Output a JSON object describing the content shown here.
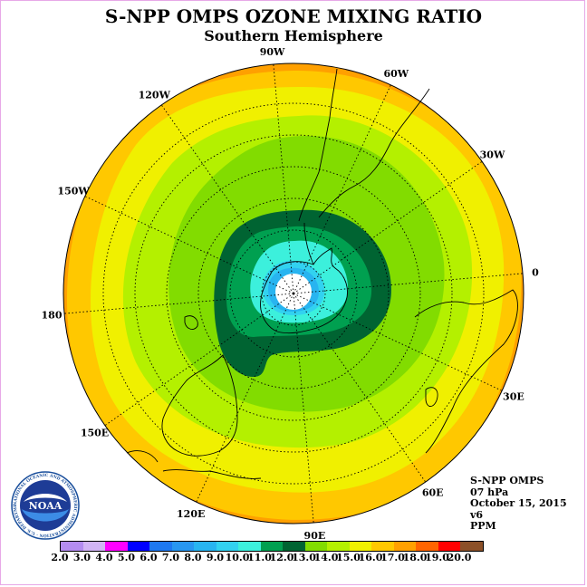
{
  "title": "S-NPP OMPS OZONE MIXING RATIO",
  "subtitle": "Southern Hemisphere",
  "longitude_labels": [
    {
      "text": "90W",
      "lon": -90
    },
    {
      "text": "60W",
      "lon": -60
    },
    {
      "text": "30W",
      "lon": -30
    },
    {
      "text": "0",
      "lon": 0
    },
    {
      "text": "30E",
      "lon": 30
    },
    {
      "text": "60E",
      "lon": 60
    },
    {
      "text": "90E",
      "lon": 90
    },
    {
      "text": "120E",
      "lon": 120
    },
    {
      "text": "150E",
      "lon": 150
    },
    {
      "text": "180",
      "lon": 180
    },
    {
      "text": "150W",
      "lon": -150
    },
    {
      "text": "120W",
      "lon": -120
    }
  ],
  "logo": {
    "text": "NOAA",
    "ring_text": "NATIONAL OCEANIC AND ATMOSPHERIC ADMINISTRATION · U.S. DEPARTMENT OF COMMERCE",
    "icon": "noaa-logo-icon"
  },
  "info": {
    "instrument": "S-NPP OMPS",
    "level": "07 hPa",
    "date": "October 15, 2015",
    "version": "v6",
    "units": "PPM"
  },
  "colorbar": {
    "ticks": [
      "2.0",
      "3.0",
      "4.0",
      "5.0",
      "6.0",
      "7.0",
      "8.0",
      "9.0",
      "10.0",
      "11.0",
      "12.0",
      "13.0",
      "14.0",
      "15.0",
      "16.0",
      "17.0",
      "18.0",
      "19.0",
      "20.0"
    ],
    "colors": [
      "#b48cf0",
      "#d2b4f5",
      "#ff00ff",
      "#0000ff",
      "#1e78f0",
      "#2896f0",
      "#28b4f0",
      "#32d2f0",
      "#3cf0dc",
      "#00a050",
      "#006432",
      "#82dc00",
      "#b4f000",
      "#f0f000",
      "#ffc800",
      "#ffa000",
      "#ff6400",
      "#ff0000",
      "#8c5028"
    ]
  },
  "map": {
    "contour_levels_ppm": [
      16,
      15,
      14,
      13,
      12,
      11,
      10,
      9,
      8
    ],
    "level_colors": {
      "16": "#ffc800",
      "15": "#f0f000",
      "14": "#b4f000",
      "13": "#82dc00",
      "12": "#006432",
      "11": "#00a050",
      "10": "#3cf0dc",
      "9": "#32d2f0",
      "8": "#28b4f0"
    },
    "pole_hole_color": "#ffffff",
    "rim_color": "#ffa000"
  }
}
